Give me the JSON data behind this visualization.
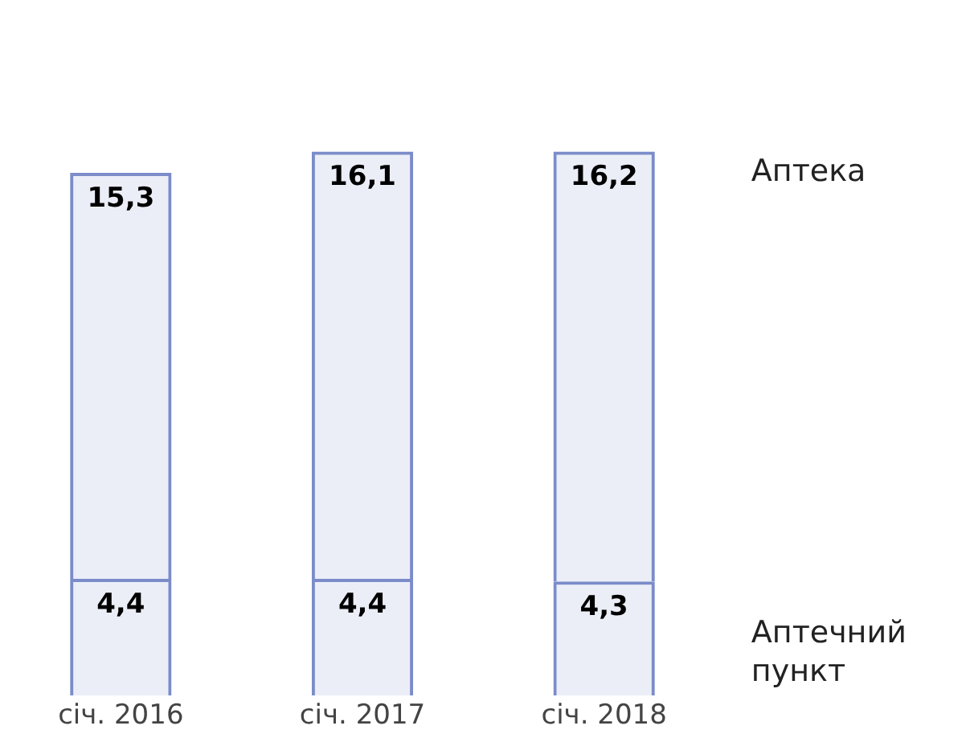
{
  "chart_data": {
    "type": "bar",
    "stacked": true,
    "categories": [
      "січ. 2016",
      "січ. 2017",
      "січ. 2018"
    ],
    "series": [
      {
        "name": "Аптечний пункт",
        "color": "#7b8cc9",
        "values": [
          4.4,
          4.4,
          4.3
        ],
        "value_labels": [
          "4,4",
          "4,4",
          "4,3"
        ]
      },
      {
        "name": "Аптека",
        "color": "#7b8cc9",
        "values": [
          15.3,
          16.1,
          16.2
        ],
        "value_labels": [
          "15,3",
          "16,1",
          "16,2"
        ]
      }
    ],
    "grid": false,
    "legend": false,
    "tick_labels": "x"
  }
}
